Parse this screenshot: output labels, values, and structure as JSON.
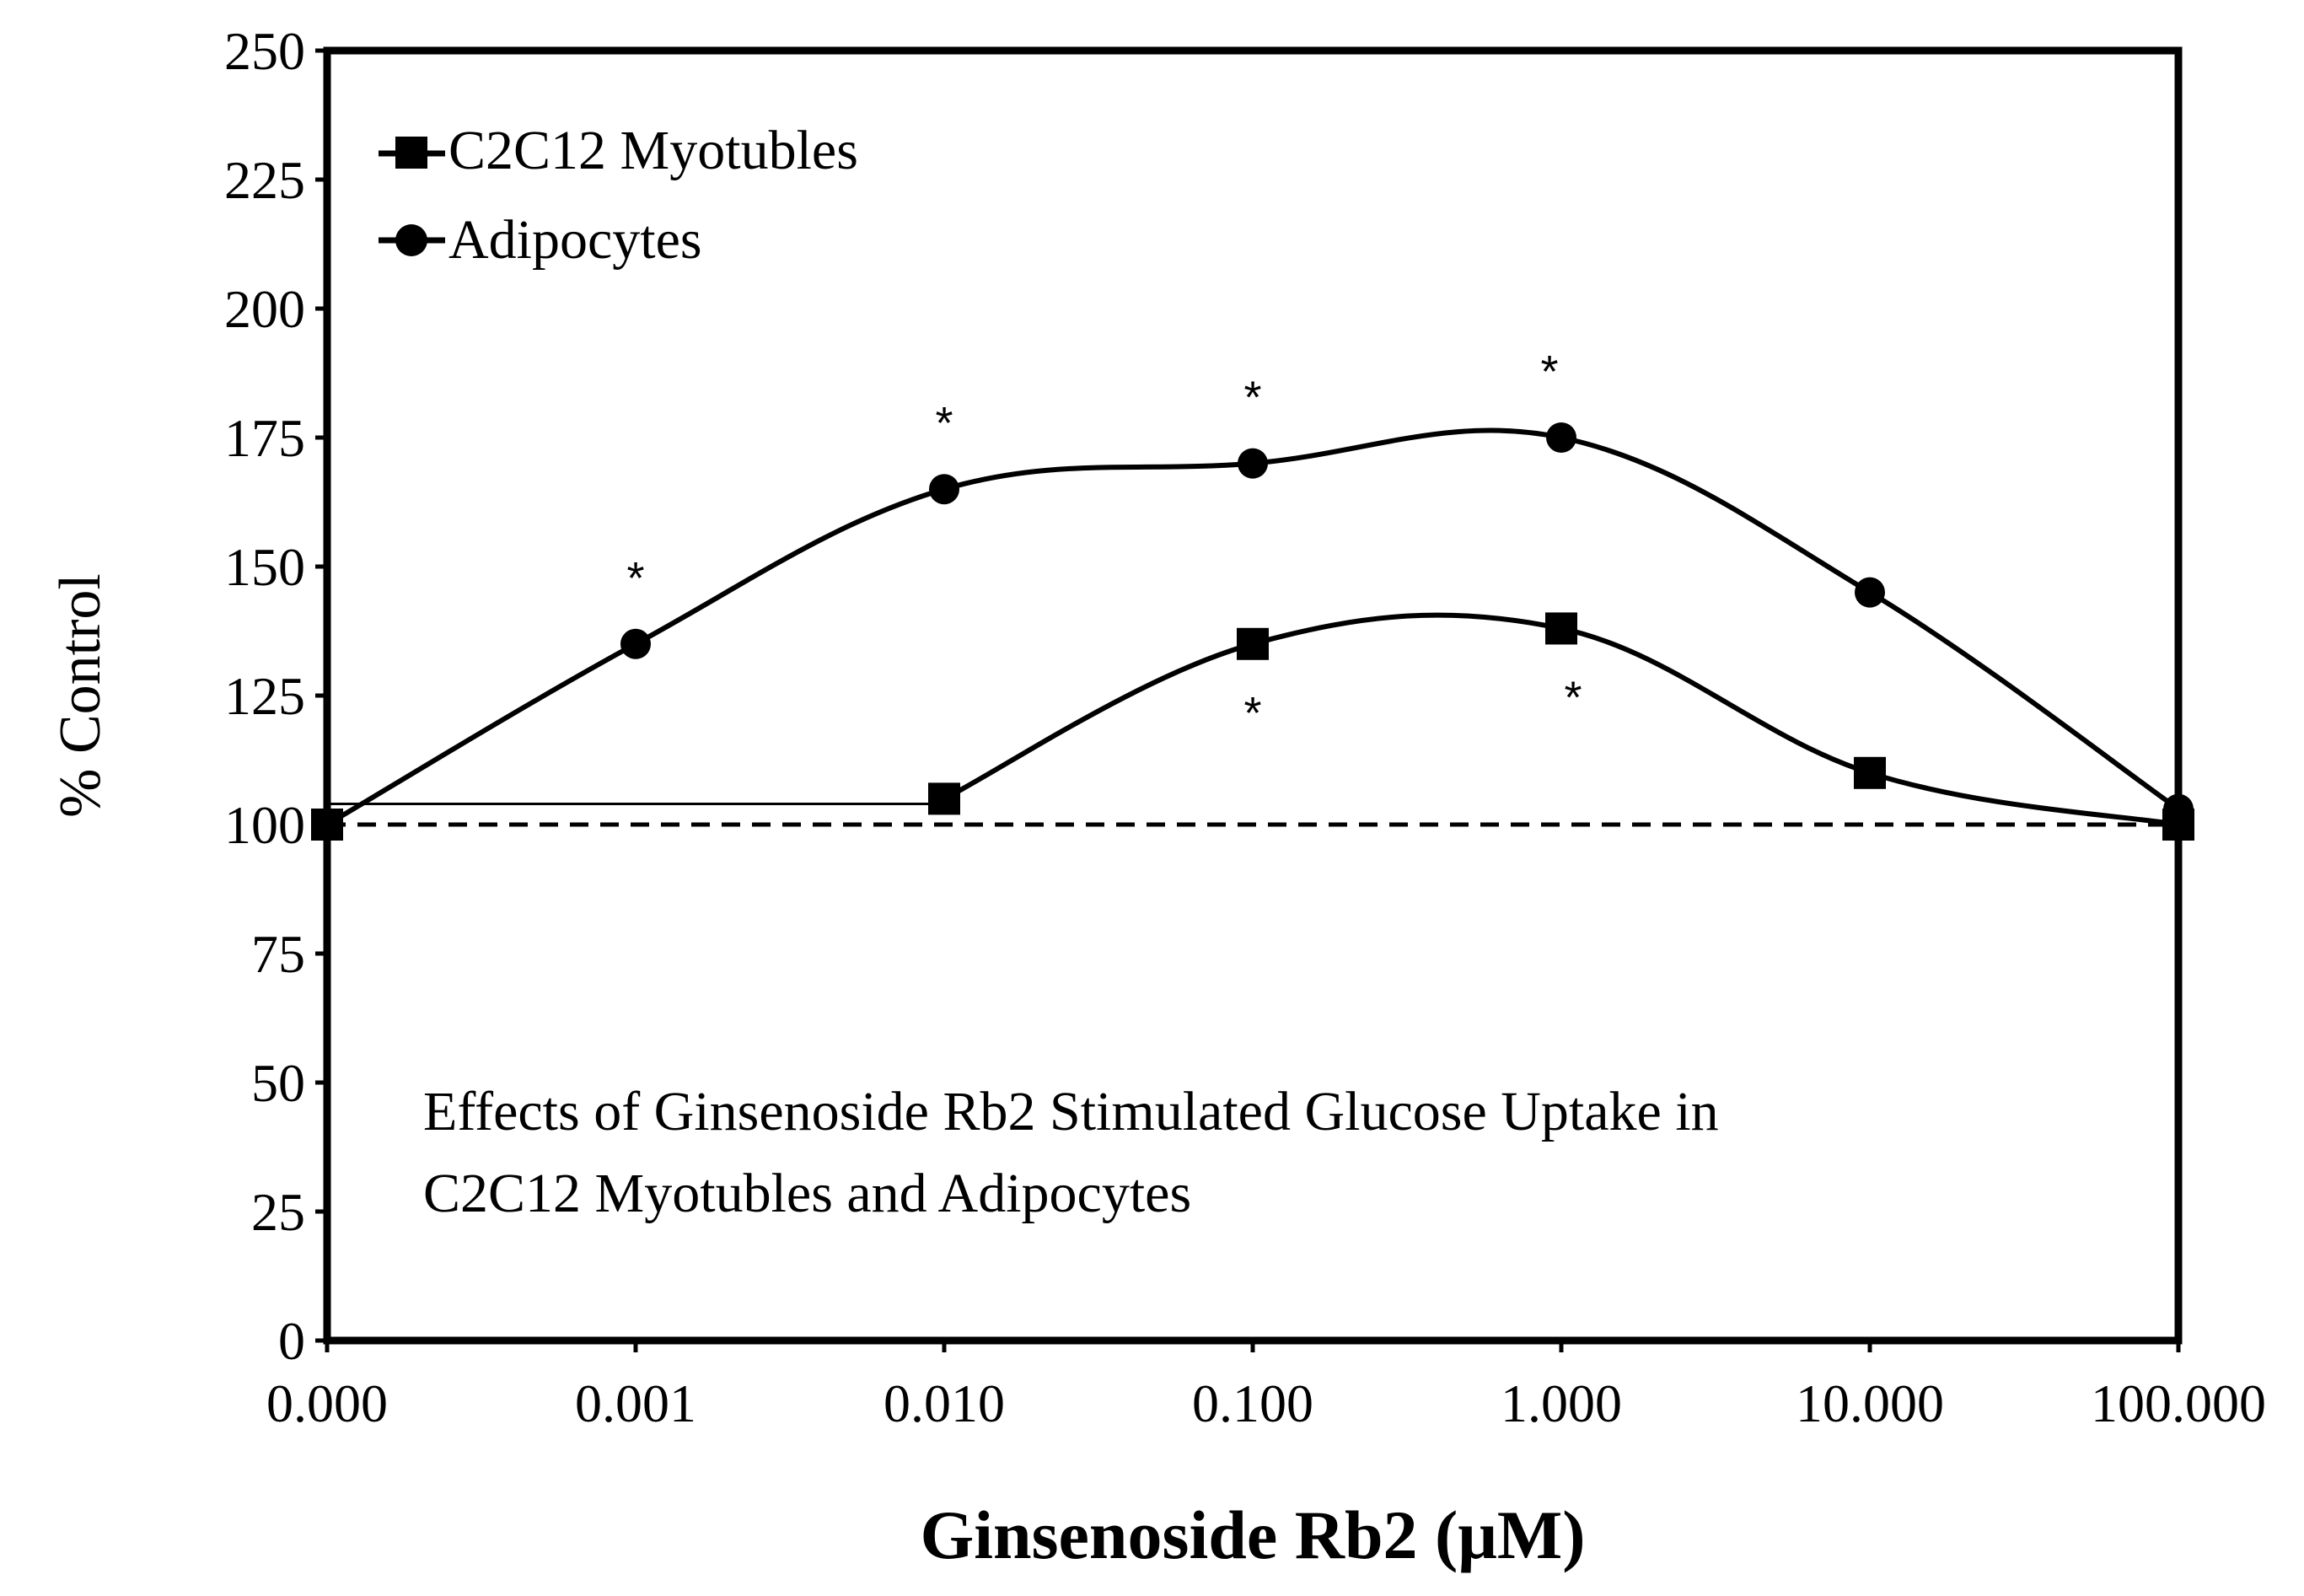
{
  "chart_data": {
    "type": "line",
    "title": "Effects of Ginsenoside Rb2 Stimulated Glucose Uptake in C2C12 Myotubles and Adipocytes",
    "annotation_lines": [
      "Effects of Ginsenoside Rb2 Stimulated Glucose Uptake in",
      "C2C12 Myotubles and Adipocytes"
    ],
    "xlabel": "Ginsenoside Rb2 (μM)",
    "ylabel": "% Control",
    "x_categories": [
      "0.000",
      "0.001",
      "0.010",
      "0.100",
      "1.000",
      "10.000",
      "100.000"
    ],
    "y_ticks": [
      "0",
      "25",
      "50",
      "75",
      "100",
      "125",
      "150",
      "175",
      "200",
      "225",
      "250"
    ],
    "ylim": [
      0,
      250
    ],
    "reference_line": {
      "value": 100,
      "style": "dashed"
    },
    "series": [
      {
        "name": "C2C12 Myotubles",
        "marker": "square",
        "values": [
          100,
          null,
          105,
          135,
          138,
          110,
          100
        ],
        "connector_from_first": 104,
        "significance": [
          "",
          "",
          "",
          "*",
          "*",
          "",
          ""
        ],
        "significance_position": "below"
      },
      {
        "name": "Adipocytes",
        "marker": "circle",
        "values": [
          100,
          135,
          165,
          170,
          175,
          145,
          103
        ],
        "significance": [
          "",
          "*",
          "*",
          "*",
          "*",
          "",
          ""
        ],
        "significance_position": "above"
      }
    ],
    "legend": {
      "position": "top-left",
      "entries": [
        "C2C12 Myotubles",
        "Adipocytes"
      ]
    },
    "grid": false
  }
}
